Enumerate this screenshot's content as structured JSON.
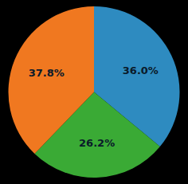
{
  "chart_data": {
    "type": "pie",
    "values": [
      36.0,
      26.2,
      37.8
    ],
    "value_labels": [
      "36.0%",
      "26.2%",
      "37.8%"
    ],
    "colors": [
      "#2e8bc0",
      "#3aaa35",
      "#f07820"
    ],
    "data_labels": true
  }
}
